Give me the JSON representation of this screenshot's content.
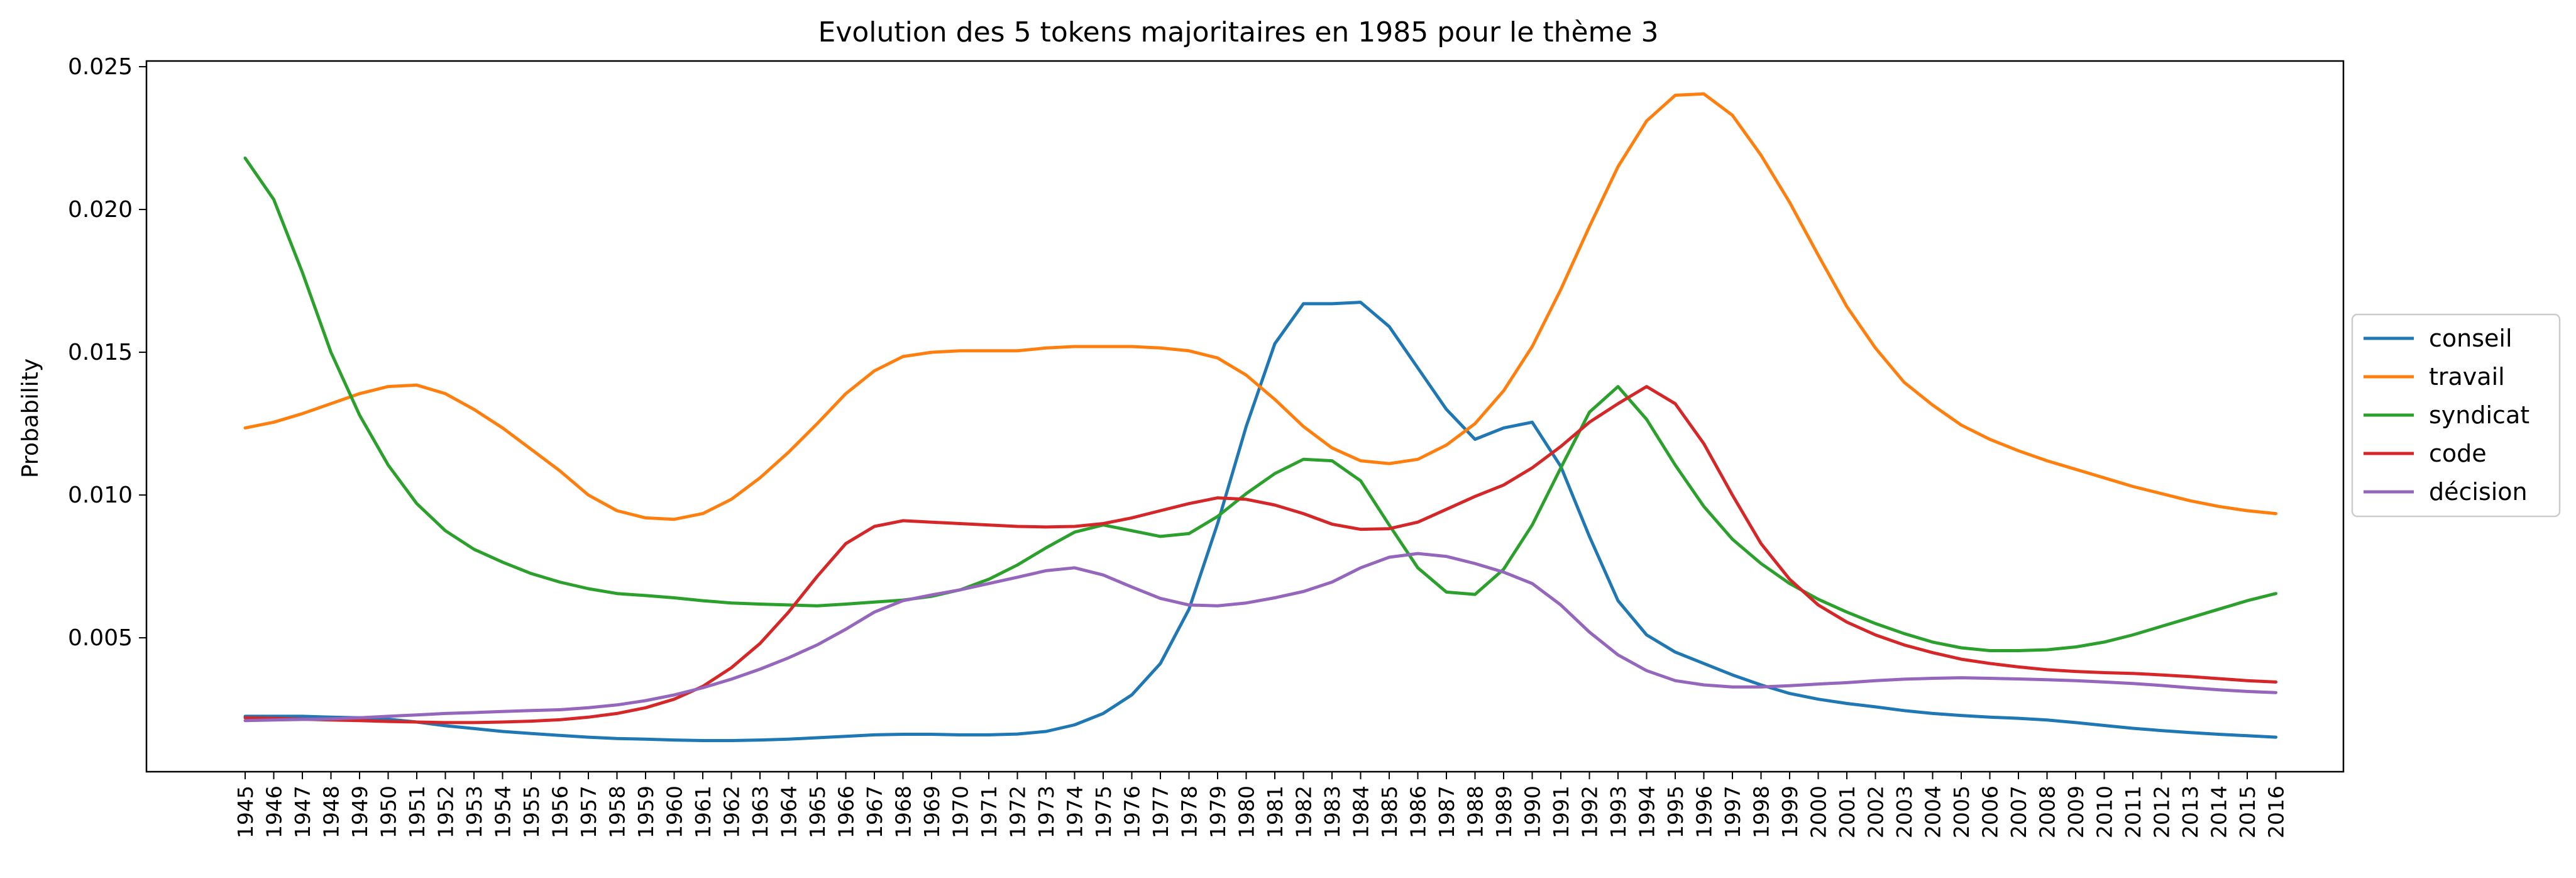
{
  "chart_data": {
    "type": "line",
    "title": "Evolution des 5 tokens majoritaires en 1985 pour le thème 3",
    "xlabel": "",
    "ylabel": "Probability",
    "x": [
      "1945",
      "1946",
      "1947",
      "1948",
      "1949",
      "1950",
      "1951",
      "1952",
      "1953",
      "1954",
      "1955",
      "1956",
      "1957",
      "1958",
      "1959",
      "1960",
      "1961",
      "1962",
      "1963",
      "1964",
      "1965",
      "1966",
      "1967",
      "1968",
      "1969",
      "1970",
      "1971",
      "1972",
      "1973",
      "1974",
      "1975",
      "1976",
      "1977",
      "1978",
      "1979",
      "1980",
      "1981",
      "1982",
      "1983",
      "1984",
      "1985",
      "1986",
      "1987",
      "1988",
      "1989",
      "1990",
      "1991",
      "1992",
      "1993",
      "1994",
      "1995",
      "1996",
      "1997",
      "1998",
      "1999",
      "2000",
      "2001",
      "2002",
      "2003",
      "2004",
      "2005",
      "2006",
      "2007",
      "2008",
      "2009",
      "2010",
      "2011",
      "2012",
      "2013",
      "2014",
      "2015",
      "2016"
    ],
    "yticks": [
      "0.005",
      "0.010",
      "0.015",
      "0.020",
      "0.025"
    ],
    "ylim": [
      0.00031,
      0.0252
    ],
    "grid": false,
    "legend_position": "center-right, outside",
    "series": [
      {
        "name": "conseil",
        "color": "#1f77b4",
        "values": [
          0.00225,
          0.00225,
          0.00225,
          0.00222,
          0.0022,
          0.00215,
          0.00205,
          0.00192,
          0.00182,
          0.00172,
          0.00165,
          0.00158,
          0.00152,
          0.00147,
          0.00145,
          0.00142,
          0.0014,
          0.0014,
          0.00142,
          0.00145,
          0.0015,
          0.00155,
          0.0016,
          0.00162,
          0.00162,
          0.0016,
          0.0016,
          0.00163,
          0.00172,
          0.00195,
          0.00235,
          0.003,
          0.0041,
          0.006,
          0.009,
          0.0124,
          0.0153,
          0.0167,
          0.0167,
          0.01675,
          0.0159,
          0.01445,
          0.013,
          0.01195,
          0.01235,
          0.01255,
          0.011,
          0.00855,
          0.0063,
          0.0051,
          0.0045,
          0.0041,
          0.0037,
          0.00335,
          0.00305,
          0.00285,
          0.0027,
          0.00258,
          0.00245,
          0.00235,
          0.00228,
          0.00222,
          0.00218,
          0.00212,
          0.00203,
          0.00193,
          0.00183,
          0.00175,
          0.00168,
          0.00162,
          0.00157,
          0.00152
        ]
      },
      {
        "name": "travail",
        "color": "#ff7f0e",
        "values": [
          0.01235,
          0.01255,
          0.01285,
          0.0132,
          0.01355,
          0.0138,
          0.01385,
          0.01355,
          0.013,
          0.01235,
          0.0116,
          0.01085,
          0.01,
          0.00945,
          0.0092,
          0.00915,
          0.00935,
          0.00985,
          0.0106,
          0.0115,
          0.0125,
          0.01355,
          0.01435,
          0.01485,
          0.015,
          0.01505,
          0.01505,
          0.01505,
          0.01515,
          0.0152,
          0.0152,
          0.0152,
          0.01515,
          0.01505,
          0.0148,
          0.0142,
          0.01335,
          0.0124,
          0.01165,
          0.0112,
          0.0111,
          0.01125,
          0.01175,
          0.0125,
          0.01365,
          0.0152,
          0.0172,
          0.0194,
          0.0215,
          0.0231,
          0.024,
          0.02405,
          0.0233,
          0.0219,
          0.02025,
          0.0184,
          0.0166,
          0.01515,
          0.01395,
          0.01315,
          0.01245,
          0.01195,
          0.01155,
          0.0112,
          0.0109,
          0.0106,
          0.0103,
          0.01005,
          0.0098,
          0.0096,
          0.00945,
          0.00935
        ]
      },
      {
        "name": "syndicat",
        "color": "#2ca02c",
        "values": [
          0.0218,
          0.02035,
          0.0178,
          0.015,
          0.0128,
          0.01105,
          0.0097,
          0.00875,
          0.0081,
          0.00765,
          0.00725,
          0.00695,
          0.00672,
          0.00655,
          0.00648,
          0.0064,
          0.0063,
          0.00622,
          0.00618,
          0.00615,
          0.00612,
          0.00618,
          0.00625,
          0.00632,
          0.00645,
          0.00668,
          0.00705,
          0.00755,
          0.00815,
          0.0087,
          0.00895,
          0.00875,
          0.00855,
          0.00865,
          0.00925,
          0.01005,
          0.01075,
          0.01125,
          0.0112,
          0.0105,
          0.00895,
          0.00745,
          0.0066,
          0.00652,
          0.0074,
          0.00895,
          0.01095,
          0.0129,
          0.0138,
          0.01265,
          0.01105,
          0.0096,
          0.00845,
          0.0076,
          0.0069,
          0.00635,
          0.0059,
          0.0055,
          0.00515,
          0.00485,
          0.00465,
          0.00455,
          0.00455,
          0.00458,
          0.00468,
          0.00485,
          0.0051,
          0.0054,
          0.0057,
          0.006,
          0.0063,
          0.00655
        ]
      },
      {
        "name": "code",
        "color": "#d62728",
        "values": [
          0.0022,
          0.00218,
          0.00215,
          0.00212,
          0.0021,
          0.00207,
          0.00205,
          0.00203,
          0.00203,
          0.00205,
          0.00208,
          0.00213,
          0.00222,
          0.00235,
          0.00255,
          0.00285,
          0.0033,
          0.00395,
          0.0048,
          0.0059,
          0.00715,
          0.0083,
          0.0089,
          0.0091,
          0.00905,
          0.009,
          0.00895,
          0.0089,
          0.00888,
          0.0089,
          0.009,
          0.0092,
          0.00945,
          0.0097,
          0.0099,
          0.00985,
          0.00965,
          0.00935,
          0.00898,
          0.0088,
          0.00882,
          0.00905,
          0.0095,
          0.00995,
          0.01035,
          0.01095,
          0.0117,
          0.01255,
          0.0132,
          0.0138,
          0.0132,
          0.0118,
          0.01,
          0.0083,
          0.00705,
          0.00615,
          0.00555,
          0.0051,
          0.00475,
          0.00448,
          0.00425,
          0.0041,
          0.00398,
          0.00388,
          0.00382,
          0.00378,
          0.00375,
          0.0037,
          0.00364,
          0.00357,
          0.0035,
          0.00345
        ]
      },
      {
        "name": "décision",
        "color": "#9467bd",
        "values": [
          0.0021,
          0.00212,
          0.00214,
          0.00216,
          0.0022,
          0.00225,
          0.0023,
          0.00235,
          0.00238,
          0.00242,
          0.00245,
          0.00248,
          0.00255,
          0.00265,
          0.0028,
          0.003,
          0.00325,
          0.00355,
          0.0039,
          0.0043,
          0.00475,
          0.0053,
          0.0059,
          0.0063,
          0.0065,
          0.00668,
          0.0069,
          0.00712,
          0.00735,
          0.00745,
          0.0072,
          0.00678,
          0.00638,
          0.00615,
          0.00612,
          0.00622,
          0.0064,
          0.00662,
          0.00695,
          0.00745,
          0.00782,
          0.00795,
          0.00785,
          0.0076,
          0.0073,
          0.0069,
          0.00615,
          0.0052,
          0.0044,
          0.00385,
          0.0035,
          0.00335,
          0.00328,
          0.00328,
          0.00332,
          0.00338,
          0.00343,
          0.0035,
          0.00355,
          0.00358,
          0.0036,
          0.00358,
          0.00356,
          0.00353,
          0.0035,
          0.00345,
          0.0034,
          0.00333,
          0.00325,
          0.00318,
          0.00312,
          0.00308
        ]
      }
    ]
  }
}
